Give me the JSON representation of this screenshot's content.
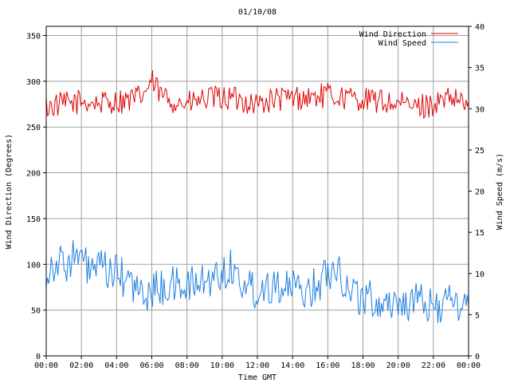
{
  "chart_data": {
    "type": "line",
    "title": "01/10/08",
    "xlabel": "Time GMT",
    "ylabel_left": "Wind Direction (Degrees)",
    "ylabel_right": "Wind Speed (m/s)",
    "x_ticks": [
      "00:00",
      "02:00",
      "04:00",
      "06:00",
      "08:00",
      "10:00",
      "12:00",
      "14:00",
      "16:00",
      "18:00",
      "20:00",
      "22:00",
      "00:00"
    ],
    "x_range_hours": [
      0,
      24
    ],
    "y_left_ticks": [
      0,
      50,
      100,
      150,
      200,
      250,
      300,
      350
    ],
    "y_left_range": [
      0,
      360
    ],
    "y_right_ticks": [
      0,
      5,
      10,
      15,
      20,
      25,
      30,
      35,
      40
    ],
    "y_right_range": [
      0,
      40
    ],
    "grid": true,
    "legend_position": "top-right",
    "series": [
      {
        "name": "Wind Direction",
        "color": "#e00000",
        "axis": "left",
        "x_hours": [
          0,
          1,
          2,
          3,
          4,
          5,
          5.5,
          6,
          6.5,
          7,
          8,
          9,
          10,
          11,
          12,
          13,
          14,
          15,
          16,
          17,
          18,
          19,
          20,
          21,
          22,
          23,
          24
        ],
        "values": [
          272,
          275,
          278,
          276,
          278,
          280,
          285,
          300,
          285,
          280,
          275,
          280,
          282,
          280,
          275,
          280,
          282,
          282,
          285,
          282,
          280,
          278,
          275,
          272,
          275,
          280,
          275
        ]
      },
      {
        "name": "Wind Speed",
        "color": "#1f80e0",
        "axis": "right",
        "x_hours": [
          0,
          0.5,
          1,
          1.5,
          2,
          2.5,
          3,
          4,
          5,
          5.5,
          6,
          7,
          8,
          9,
          10,
          10.5,
          11,
          12,
          13,
          14,
          15,
          16,
          16.5,
          17,
          18,
          19,
          20,
          21,
          22,
          23,
          24
        ],
        "values": [
          10,
          11.5,
          11,
          12,
          11.5,
          10.5,
          10.5,
          10,
          8.5,
          7,
          8,
          8.5,
          8.5,
          9,
          10,
          11,
          9,
          8,
          9,
          8,
          8,
          10,
          11.5,
          8.5,
          7,
          6.5,
          6.5,
          6.5,
          6,
          6.5,
          6
        ]
      }
    ]
  }
}
